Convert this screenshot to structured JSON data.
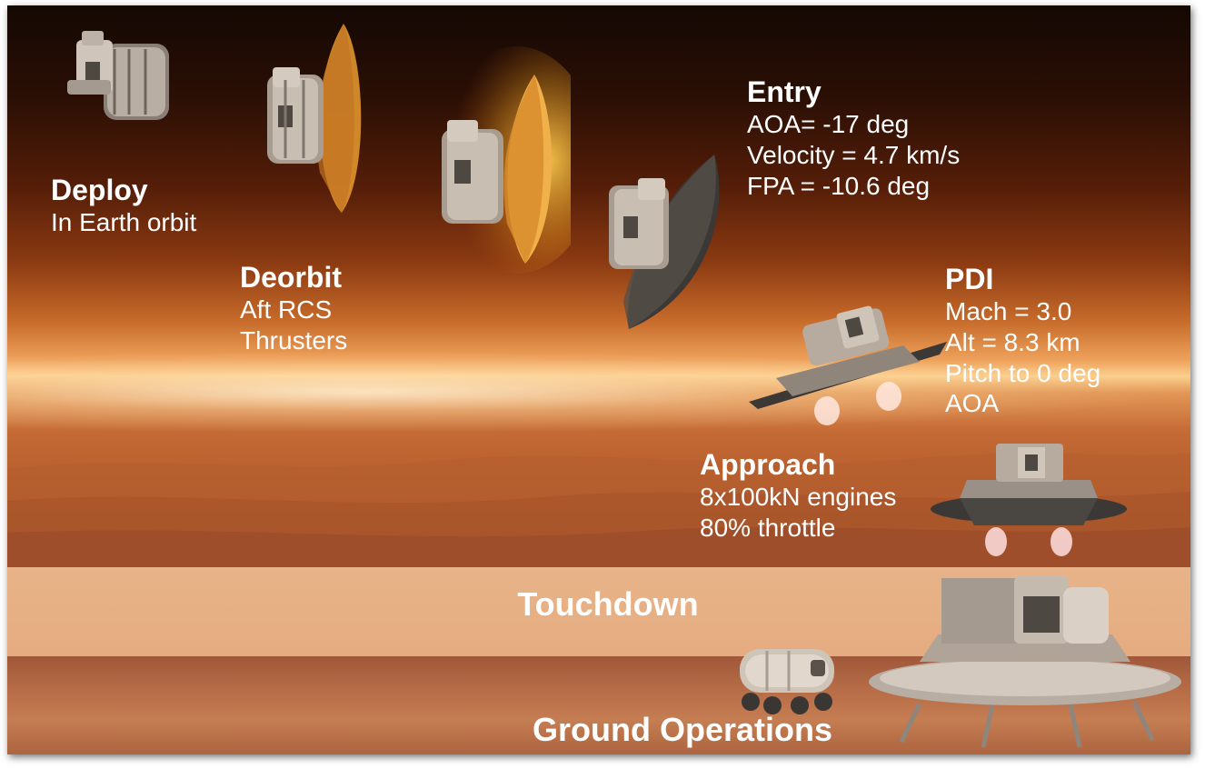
{
  "phases": {
    "deploy": {
      "title": "Deploy",
      "lines": [
        "In Earth orbit"
      ]
    },
    "deorbit": {
      "title": "Deorbit",
      "lines": [
        "Aft RCS",
        "Thrusters"
      ]
    },
    "entry": {
      "title": "Entry",
      "lines": [
        "AOA= -17 deg",
        "Velocity = 4.7 km/s",
        "FPA = -10.6 deg"
      ]
    },
    "pdi": {
      "title": "PDI",
      "lines": [
        "Mach = 3.0",
        "Alt = 8.3 km",
        "Pitch to 0 deg",
        "AOA"
      ]
    },
    "approach": {
      "title": "Approach",
      "lines": [
        "8x100kN engines",
        "80% throttle"
      ]
    },
    "touchdown": {
      "title": "Touchdown"
    },
    "ground": {
      "title": "Ground Operations"
    }
  },
  "colors": {
    "text": "#ffffff",
    "band": "#e8b389",
    "heatshield": "#e0952e",
    "aeroshell": "#3b3835"
  },
  "icons": [
    "spacecraft-capsule-icon",
    "heatshield-vehicle-icon",
    "lander-icon",
    "rover-icon"
  ]
}
